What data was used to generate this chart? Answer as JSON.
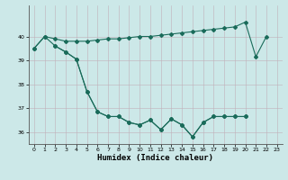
{
  "xlabel": "Humidex (Indice chaleur)",
  "background_color": "#cce8e8",
  "line_color": "#1a6b5a",
  "xlim": [
    -0.5,
    23.5
  ],
  "ylim": [
    35.5,
    41.3
  ],
  "upper_x": [
    0,
    1,
    2,
    3,
    4,
    5,
    6,
    7,
    8,
    9,
    10,
    11,
    12,
    13,
    14,
    15,
    16,
    17,
    18,
    19,
    20,
    21,
    22
  ],
  "upper_y": [
    39.5,
    40.0,
    39.9,
    39.8,
    39.8,
    39.8,
    39.85,
    39.9,
    39.9,
    39.95,
    40.0,
    40.0,
    40.05,
    40.1,
    40.15,
    40.2,
    40.25,
    40.3,
    40.35,
    40.4,
    40.6,
    39.15,
    40.0
  ],
  "mid_x": [
    0,
    1,
    2,
    3,
    4,
    5,
    6,
    7,
    8,
    9,
    10,
    11,
    12,
    13,
    14,
    15,
    16,
    17,
    18,
    19,
    20
  ],
  "mid_y": [
    39.5,
    40.0,
    39.6,
    39.35,
    39.05,
    37.7,
    36.85,
    36.65,
    36.65,
    36.4,
    36.3,
    36.5,
    36.1,
    36.55,
    36.3,
    35.8,
    36.4,
    36.65,
    36.65,
    36.65,
    36.65
  ],
  "low_x": [
    2,
    3,
    4,
    5,
    6,
    7,
    8,
    9,
    10,
    11,
    12,
    13,
    14,
    15,
    16,
    17,
    18,
    19,
    20
  ],
  "low_y": [
    39.6,
    39.35,
    39.05,
    37.7,
    36.85,
    36.65,
    36.65,
    36.4,
    36.3,
    36.5,
    36.1,
    36.55,
    36.3,
    35.8,
    36.4,
    36.65,
    36.65,
    36.65,
    36.65
  ],
  "yticks": [
    36,
    37,
    38,
    39,
    40
  ],
  "xticks": [
    0,
    1,
    2,
    3,
    4,
    5,
    6,
    7,
    8,
    9,
    10,
    11,
    12,
    13,
    14,
    15,
    16,
    17,
    18,
    19,
    20,
    21,
    22,
    23
  ]
}
